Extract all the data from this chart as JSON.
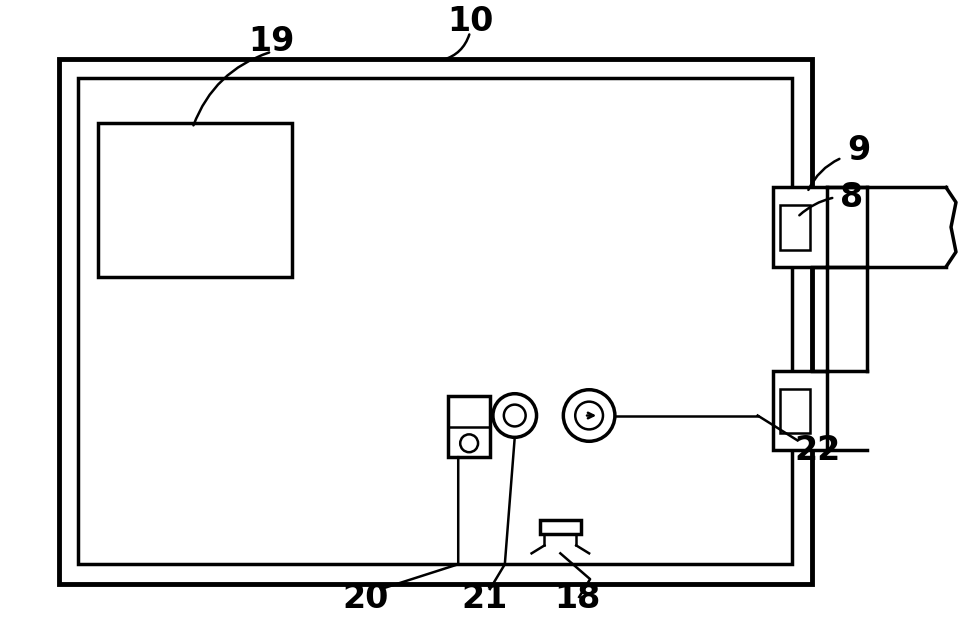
{
  "bg_color": "#ffffff",
  "line_color": "#000000",
  "fig_width": 9.69,
  "fig_height": 6.41,
  "dpi": 100,
  "lw_outer": 3.5,
  "lw_inner": 2.5,
  "lw_thin": 1.8
}
